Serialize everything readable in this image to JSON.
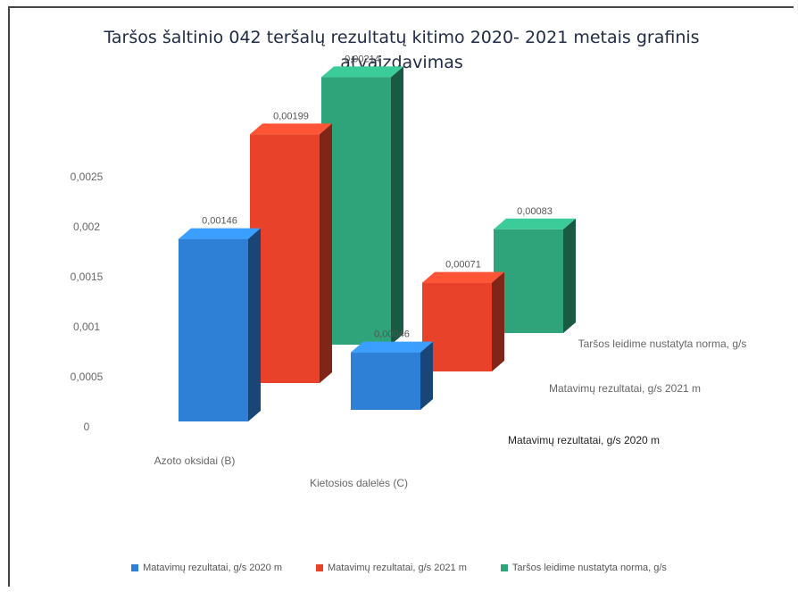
{
  "title": "Taršos šaltinio 042 teršalų rezultatų kitimo 2020- 2021 metais grafinis atvaizdavimas",
  "chart_data": {
    "type": "bar",
    "title": "Taršos šaltinio 042 teršalų rezultatų kitimo 2020- 2021 metais grafinis atvaizdavimas",
    "categories": [
      "Azoto oksidai (B)",
      "Kietosios dalelės (C)"
    ],
    "series": [
      {
        "name": "Matavimų rezultatai, g/s 2020 m",
        "color": "#2e7fd6",
        "values": [
          0.00146,
          0.00046
        ],
        "labels": [
          "0,00146",
          "0,00046"
        ]
      },
      {
        "name": "Matavimų rezultatai, g/s 2021 m",
        "color": "#e8432a",
        "values": [
          0.00199,
          0.00071
        ],
        "labels": [
          "0,00199",
          "0,00071"
        ]
      },
      {
        "name": "Taršos leidime nustatyta norma, g/s",
        "color": "#2fa37a",
        "values": [
          0.00214,
          0.00083
        ],
        "labels": [
          "0,00214",
          "0,00083"
        ]
      }
    ],
    "depth_axis_labels": [
      "Taršos leidime nustatyta norma, g/s",
      "Matavimų rezultatai, g/s 2021 m",
      "Matavimų rezultatai, g/s 2020 m"
    ],
    "y_ticks": [
      "0",
      "0,0005",
      "0,001",
      "0,0015",
      "0,002",
      "0,0025"
    ],
    "ylim": [
      0,
      0.0025
    ],
    "legend_position": "bottom",
    "grid": false
  },
  "legend": [
    {
      "label": "Matavimų rezultatai, g/s 2020 m",
      "color": "#2e7fd6"
    },
    {
      "label": "Matavimų rezultatai, g/s 2021 m",
      "color": "#e8432a"
    },
    {
      "label": "Taršos leidime nustatyta norma, g/s",
      "color": "#2fa37a"
    }
  ]
}
